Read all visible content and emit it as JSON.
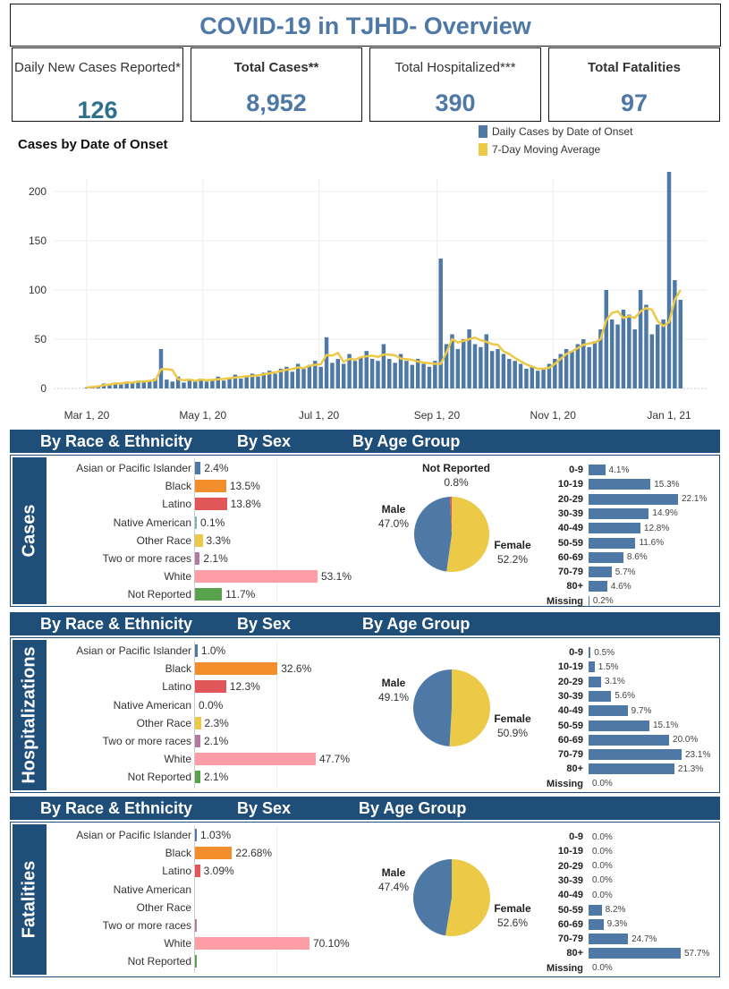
{
  "header": {
    "title": "COVID-19 in TJHD- Overview"
  },
  "kpis": [
    {
      "label": "Daily New Cases Reported*",
      "value": "126"
    },
    {
      "label": "Total Cases**",
      "value": "8,952"
    },
    {
      "label": "Total Hospitalized***",
      "value": "390"
    },
    {
      "label": "Total Fatalities",
      "value": "97"
    }
  ],
  "chart_data": {
    "type": "bar",
    "title": "Cases by Date of Onset",
    "legend": [
      "Daily Cases by Date of Onset",
      "7-Day Moving Average"
    ],
    "legend_position": "top-right",
    "colors": {
      "bars": "#4e79a7",
      "line": "#edc948"
    },
    "x_start": "2020-03-01",
    "x_step_days": 3,
    "x_ticks": [
      "Mar 1, 20",
      "May 1, 20",
      "Jul 1, 20",
      "Sep 1, 20",
      "Nov 1, 20",
      "Jan 1, 21"
    ],
    "x_tick_days": [
      0,
      61,
      122,
      184,
      245,
      306
    ],
    "y_ticks": [
      0,
      50,
      100,
      150,
      200
    ],
    "ylim": [
      0,
      225
    ],
    "daily_cases": [
      1,
      2,
      3,
      5,
      4,
      6,
      5,
      7,
      6,
      8,
      7,
      8,
      10,
      40,
      9,
      7,
      12,
      6,
      9,
      8,
      10,
      7,
      9,
      12,
      8,
      11,
      14,
      10,
      13,
      15,
      12,
      16,
      18,
      15,
      20,
      22,
      17,
      25,
      20,
      24,
      28,
      22,
      52,
      26,
      30,
      25,
      35,
      28,
      32,
      38,
      30,
      28,
      45,
      30,
      26,
      35,
      28,
      24,
      30,
      25,
      22,
      28,
      132,
      45,
      55,
      40,
      50,
      60,
      45,
      42,
      55,
      38,
      40,
      35,
      30,
      28,
      25,
      20,
      22,
      18,
      20,
      25,
      30,
      35,
      40,
      38,
      45,
      50,
      42,
      48,
      60,
      100,
      70,
      65,
      80,
      75,
      60,
      100,
      85,
      55,
      65,
      70,
      220,
      110,
      90
    ]
  },
  "sections": {
    "race": "By Race & Ethnicity",
    "sex": "By Sex",
    "age": "By Age Group"
  },
  "colors": {
    "Asian or Pacific Islander": "#4e79a7",
    "Black": "#f28e2b",
    "Latino": "#e15759",
    "Native American": "#76b7b2",
    "Other Race": "#edc948",
    "Two or more races": "#b07aa1",
    "White": "#ff9da7",
    "Not Reported": "#59a14f"
  },
  "panels": [
    {
      "name": "Cases",
      "race": [
        [
          "Asian or Pacific Islander",
          2.4,
          "2.4%"
        ],
        [
          "Black",
          13.5,
          "13.5%"
        ],
        [
          "Latino",
          13.8,
          "13.8%"
        ],
        [
          "Native American",
          0.1,
          "0.1%"
        ],
        [
          "Other Race",
          3.3,
          "3.3%"
        ],
        [
          "Two or more races",
          2.1,
          "2.1%"
        ],
        [
          "White",
          53.1,
          "53.1%"
        ],
        [
          "Not Reported",
          11.7,
          "11.7%"
        ]
      ],
      "sex": {
        "male": {
          "label": "Male",
          "value": "47.0%",
          "pct": 47.0
        },
        "female": {
          "label": "Female",
          "value": "52.2%",
          "pct": 52.2
        },
        "other": {
          "label": "Not Reported",
          "value": "0.8%",
          "pct": 0.8
        }
      },
      "age": [
        [
          "0-9",
          4.1,
          "4.1%"
        ],
        [
          "10-19",
          15.3,
          "15.3%"
        ],
        [
          "20-29",
          22.1,
          "22.1%"
        ],
        [
          "30-39",
          14.9,
          "14.9%"
        ],
        [
          "40-49",
          12.8,
          "12.8%"
        ],
        [
          "50-59",
          11.6,
          "11.6%"
        ],
        [
          "60-69",
          8.6,
          "8.6%"
        ],
        [
          "70-79",
          5.7,
          "5.7%"
        ],
        [
          "80+",
          4.6,
          "4.6%"
        ],
        [
          "Missing",
          0.2,
          "0.2%"
        ]
      ]
    },
    {
      "name": "Hospitalizations",
      "race": [
        [
          "Asian or Pacific Islander",
          1.0,
          "1.0%"
        ],
        [
          "Black",
          32.6,
          "32.6%"
        ],
        [
          "Latino",
          12.3,
          "12.3%"
        ],
        [
          "Native American",
          0.0,
          "0.0%"
        ],
        [
          "Other Race",
          2.3,
          "2.3%"
        ],
        [
          "Two or more races",
          2.1,
          "2.1%"
        ],
        [
          "White",
          47.7,
          "47.7%"
        ],
        [
          "Not Reported",
          2.1,
          "2.1%"
        ]
      ],
      "sex": {
        "male": {
          "label": "Male",
          "value": "49.1%",
          "pct": 49.1
        },
        "female": {
          "label": "Female",
          "value": "50.9%",
          "pct": 50.9
        }
      },
      "age": [
        [
          "0-9",
          0.5,
          "0.5%"
        ],
        [
          "10-19",
          1.5,
          "1.5%"
        ],
        [
          "20-29",
          3.1,
          "3.1%"
        ],
        [
          "30-39",
          5.6,
          "5.6%"
        ],
        [
          "40-49",
          9.7,
          "9.7%"
        ],
        [
          "50-59",
          15.1,
          "15.1%"
        ],
        [
          "60-69",
          20.0,
          "20.0%"
        ],
        [
          "70-79",
          23.1,
          "23.1%"
        ],
        [
          "80+",
          21.3,
          "21.3%"
        ],
        [
          "Missing",
          0.0,
          "0.0%"
        ]
      ]
    },
    {
      "name": "Fatalities",
      "race": [
        [
          "Asian or Pacific Islander",
          1.03,
          "1.03%"
        ],
        [
          "Black",
          22.68,
          "22.68%"
        ],
        [
          "Latino",
          3.09,
          "3.09%"
        ],
        [
          "Native American",
          0,
          ""
        ],
        [
          "Other Race",
          0,
          ""
        ],
        [
          "Two or more races",
          0.3,
          ""
        ],
        [
          "White",
          70.1,
          "70.10%"
        ],
        [
          "Not Reported",
          0.3,
          ""
        ]
      ],
      "sex": {
        "male": {
          "label": "Male",
          "value": "47.4%",
          "pct": 47.4
        },
        "female": {
          "label": "Female",
          "value": "52.6%",
          "pct": 52.6
        }
      },
      "age": [
        [
          "0-9",
          0.0,
          "0.0%"
        ],
        [
          "10-19",
          0.0,
          "0.0%"
        ],
        [
          "20-29",
          0.0,
          "0.0%"
        ],
        [
          "30-39",
          0.0,
          "0.0%"
        ],
        [
          "40-49",
          0.0,
          "0.0%"
        ],
        [
          "50-59",
          8.2,
          "8.2%"
        ],
        [
          "60-69",
          9.3,
          "9.3%"
        ],
        [
          "70-79",
          24.7,
          "24.7%"
        ],
        [
          "80+",
          57.7,
          "57.7%"
        ],
        [
          "Missing",
          0.0,
          "0.0%"
        ]
      ]
    }
  ]
}
